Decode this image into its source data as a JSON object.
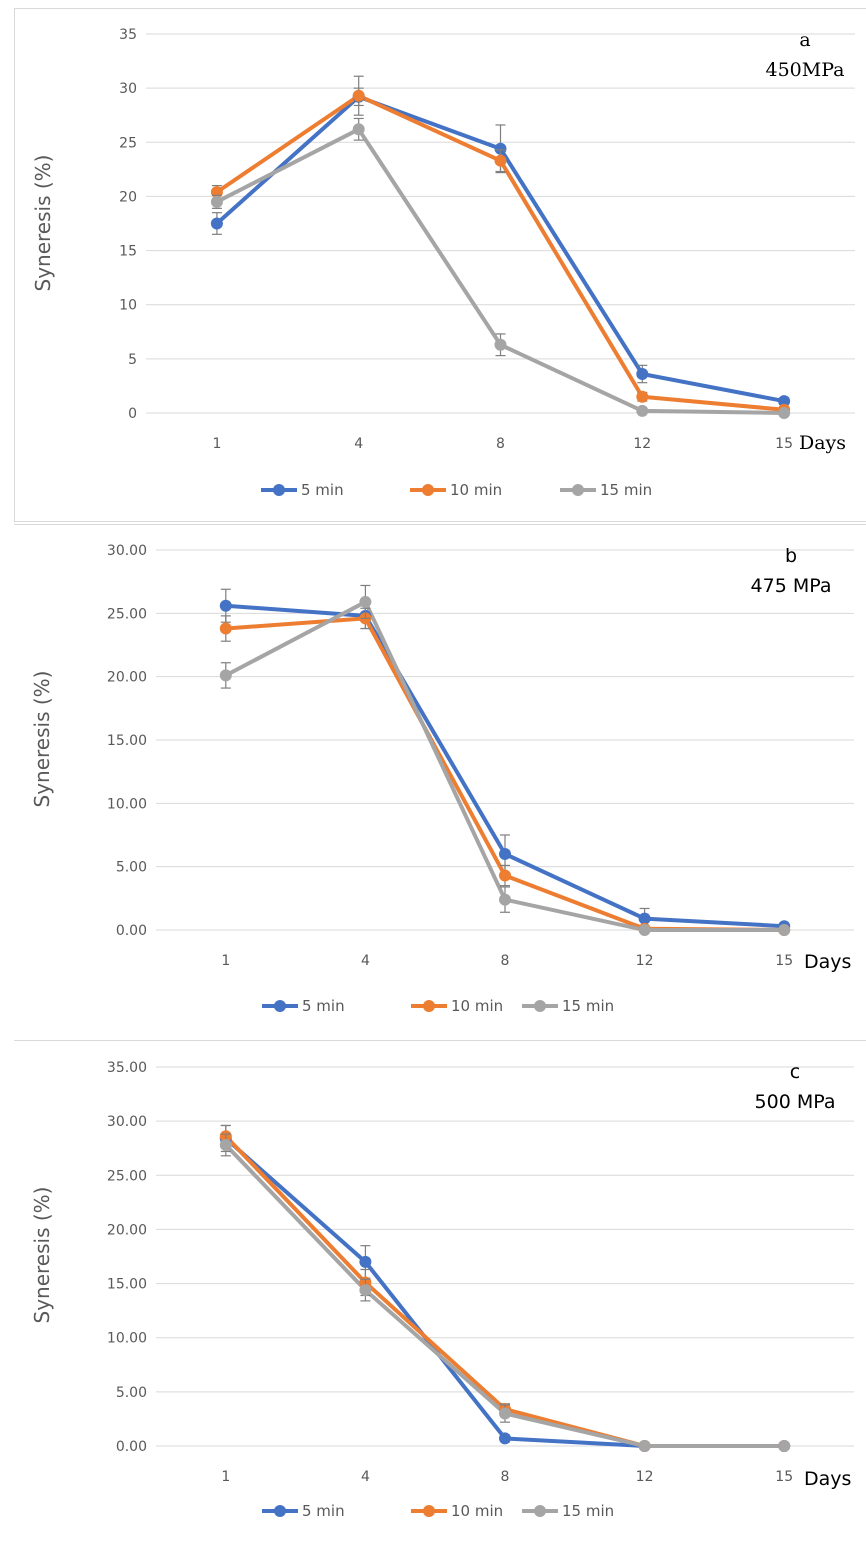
{
  "chart_data": [
    {
      "type": "line",
      "panel_letter": "a",
      "annotation": "450MPa",
      "xlabel": "Days",
      "ylabel": "Syneresis (%)",
      "categories": [
        "1",
        "4",
        "8",
        "12",
        "15"
      ],
      "ylim": [
        0,
        35
      ],
      "yticks": [
        "0",
        "5",
        "10",
        "15",
        "20",
        "25",
        "30",
        "35"
      ],
      "grid": true,
      "legend_position": "bottom",
      "series": [
        {
          "name": "5 min",
          "color": "#4472C4",
          "values": [
            17.5,
            29.2,
            24.4,
            3.6,
            1.1
          ],
          "errors": [
            1.0,
            0.8,
            2.2,
            0.8,
            0.3
          ]
        },
        {
          "name": "10 min",
          "color": "#ED7D31",
          "values": [
            20.4,
            29.3,
            23.3,
            1.5,
            0.3
          ],
          "errors": [
            0.6,
            1.8,
            1.0,
            0.4,
            0.2
          ]
        },
        {
          "name": "15 min",
          "color": "#A5A5A5",
          "values": [
            19.5,
            26.2,
            6.3,
            0.2,
            0.0
          ],
          "errors": [
            0.6,
            1.0,
            1.0,
            0.2,
            0.1
          ]
        }
      ]
    },
    {
      "type": "line",
      "panel_letter": "b",
      "annotation": "475 MPa",
      "xlabel": "Days",
      "ylabel": "Syneresis (%)",
      "categories": [
        "1",
        "4",
        "8",
        "12",
        "15"
      ],
      "ylim": [
        0,
        30
      ],
      "yticks": [
        "0.00",
        "5.00",
        "10.00",
        "15.00",
        "20.00",
        "25.00",
        "30.00"
      ],
      "grid": true,
      "legend_position": "bottom",
      "series": [
        {
          "name": "5 min",
          "color": "#4472C4",
          "values": [
            25.6,
            24.8,
            6.0,
            0.9,
            0.3
          ],
          "errors": [
            1.3,
            1.0,
            1.5,
            0.8,
            0.2
          ]
        },
        {
          "name": "10 min",
          "color": "#ED7D31",
          "values": [
            23.8,
            24.6,
            4.3,
            0.1,
            0.0
          ],
          "errors": [
            1.0,
            0.8,
            0.8,
            0.1,
            0.1
          ]
        },
        {
          "name": "15 min",
          "color": "#A5A5A5",
          "values": [
            20.1,
            25.9,
            2.4,
            0.0,
            0.0
          ],
          "errors": [
            1.0,
            1.3,
            1.0,
            0.1,
            0.1
          ]
        }
      ]
    },
    {
      "type": "line",
      "panel_letter": "c",
      "annotation": "500 MPa",
      "xlabel": "Days",
      "ylabel": "Syneresis (%)",
      "categories": [
        "1",
        "4",
        "8",
        "12",
        "15"
      ],
      "ylim": [
        0,
        35
      ],
      "yticks": [
        "0.00",
        "5.00",
        "10.00",
        "15.00",
        "20.00",
        "25.00",
        "30.00",
        "35.00"
      ],
      "grid": true,
      "legend_position": "bottom",
      "series": [
        {
          "name": "5 min",
          "color": "#4472C4",
          "values": [
            28.4,
            17.0,
            0.7,
            0.0,
            0.0
          ],
          "errors": [
            1.2,
            1.5,
            0.3,
            0.1,
            0.1
          ]
        },
        {
          "name": "10 min",
          "color": "#ED7D31",
          "values": [
            28.6,
            15.1,
            3.4,
            0.0,
            0.0
          ],
          "errors": [
            1.0,
            1.2,
            0.5,
            0.1,
            0.1
          ]
        },
        {
          "name": "15 min",
          "color": "#A5A5A5",
          "values": [
            27.8,
            14.4,
            3.0,
            0.0,
            0.0
          ],
          "errors": [
            1.0,
            1.0,
            0.8,
            0.1,
            0.1
          ]
        }
      ]
    }
  ]
}
